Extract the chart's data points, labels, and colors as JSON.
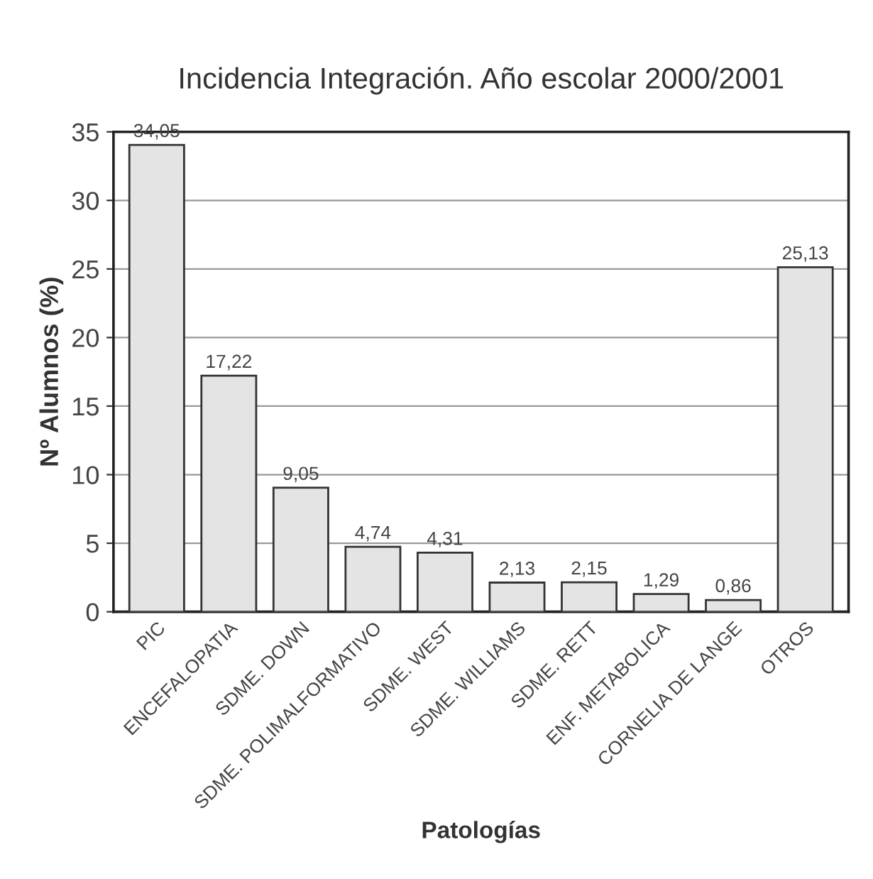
{
  "chart_data": {
    "type": "bar",
    "title": "Incidencia Integración. Año escolar 2000/2001",
    "xlabel": "Patologías",
    "ylabel": "Nº Alumnos (%)",
    "categories": [
      "PIC",
      "ENCEFALOPATIA",
      "SDME. DOWN",
      "SDME. POLIMALFORMATIVO",
      "SDME. WEST",
      "SDME. WILLIAMS",
      "SDME. RETT",
      "ENF. METABOLICA",
      "CORNELIA DE LANGE",
      "OTROS"
    ],
    "values": [
      34.05,
      17.22,
      9.05,
      4.74,
      4.31,
      2.13,
      2.15,
      1.29,
      0.86,
      25.13
    ],
    "value_labels": [
      "34,05",
      "17,22",
      "9,05",
      "4,74",
      "4,31",
      "2,13",
      "2,15",
      "1,29",
      "0,86",
      "25,13"
    ],
    "color": "#e4e4e4",
    "ylim": [
      0,
      35
    ],
    "yticks": [
      0,
      5,
      10,
      15,
      20,
      25,
      30,
      35
    ],
    "grid": "y"
  }
}
